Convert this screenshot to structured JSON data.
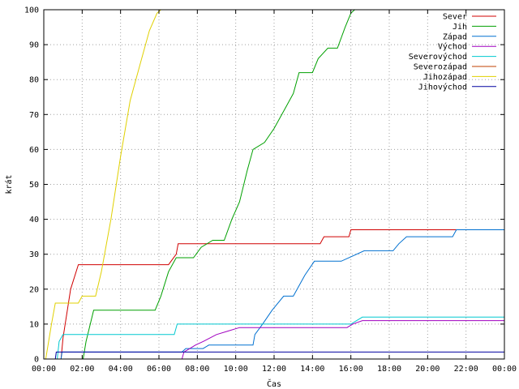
{
  "chart_data": {
    "type": "line",
    "xlabel": "Čas",
    "ylabel": "krát",
    "xlim": [
      0,
      24
    ],
    "ylim": [
      0,
      100
    ],
    "grid": true,
    "legend_position": "top-right",
    "x_ticks": [
      {
        "x": 0,
        "label": "00:00"
      },
      {
        "x": 2,
        "label": "02:00"
      },
      {
        "x": 4,
        "label": "04:00"
      },
      {
        "x": 6,
        "label": "06:00"
      },
      {
        "x": 8,
        "label": "08:00"
      },
      {
        "x": 10,
        "label": "10:00"
      },
      {
        "x": 12,
        "label": "12:00"
      },
      {
        "x": 14,
        "label": "14:00"
      },
      {
        "x": 16,
        "label": "16:00"
      },
      {
        "x": 18,
        "label": "18:00"
      },
      {
        "x": 20,
        "label": "20:00"
      },
      {
        "x": 22,
        "label": "22:00"
      },
      {
        "x": 24,
        "label": "00:00"
      }
    ],
    "y_ticks": [
      0,
      10,
      20,
      30,
      40,
      50,
      60,
      70,
      80,
      90,
      100
    ],
    "series": [
      {
        "name": "Sever",
        "color": "#d00000",
        "points": [
          [
            0.9,
            0
          ],
          [
            1.0,
            6
          ],
          [
            1.4,
            20
          ],
          [
            1.8,
            27
          ],
          [
            6.5,
            27
          ],
          [
            6.9,
            30
          ],
          [
            7.0,
            33
          ],
          [
            14.4,
            33
          ],
          [
            14.6,
            35
          ],
          [
            15.9,
            35
          ],
          [
            16.0,
            37
          ],
          [
            24,
            37
          ]
        ]
      },
      {
        "name": "Jih",
        "color": "#00a000",
        "points": [
          [
            2.05,
            0
          ],
          [
            2.2,
            5
          ],
          [
            2.6,
            14
          ],
          [
            5.8,
            14
          ],
          [
            6.1,
            18
          ],
          [
            6.5,
            25
          ],
          [
            6.9,
            29
          ],
          [
            7.8,
            29
          ],
          [
            8.2,
            32
          ],
          [
            8.8,
            34
          ],
          [
            9.4,
            34
          ],
          [
            9.8,
            40
          ],
          [
            10.2,
            45
          ],
          [
            10.6,
            54
          ],
          [
            10.9,
            60
          ],
          [
            11.5,
            62
          ],
          [
            12.0,
            66
          ],
          [
            12.6,
            72
          ],
          [
            13.0,
            76
          ],
          [
            13.3,
            82
          ],
          [
            14.0,
            82
          ],
          [
            14.3,
            86
          ],
          [
            14.8,
            89
          ],
          [
            15.3,
            89
          ],
          [
            15.7,
            95
          ],
          [
            16.0,
            99
          ],
          [
            16.2,
            100
          ]
        ]
      },
      {
        "name": "Západ",
        "color": "#0070d0",
        "points": [
          [
            0.9,
            0
          ],
          [
            0.95,
            2
          ],
          [
            7.2,
            2
          ],
          [
            7.4,
            3
          ],
          [
            8.3,
            3
          ],
          [
            8.6,
            4
          ],
          [
            10.9,
            4
          ],
          [
            11.0,
            7
          ],
          [
            11.4,
            10
          ],
          [
            11.9,
            14
          ],
          [
            12.5,
            18
          ],
          [
            13.0,
            18
          ],
          [
            13.6,
            24
          ],
          [
            14.1,
            28
          ],
          [
            15.5,
            28
          ],
          [
            16.7,
            31
          ],
          [
            18.2,
            31
          ],
          [
            18.5,
            33
          ],
          [
            18.9,
            35
          ],
          [
            21.3,
            35
          ],
          [
            21.5,
            37
          ],
          [
            24,
            37
          ]
        ]
      },
      {
        "name": "Východ",
        "color": "#a000c0",
        "points": [
          [
            7.2,
            0
          ],
          [
            7.3,
            2
          ],
          [
            7.9,
            4
          ],
          [
            8.3,
            5
          ],
          [
            9.0,
            7
          ],
          [
            9.6,
            8
          ],
          [
            10.2,
            9
          ],
          [
            15.8,
            9
          ],
          [
            16.1,
            10
          ],
          [
            16.6,
            11
          ],
          [
            24,
            11
          ]
        ]
      },
      {
        "name": "Severovýchod",
        "color": "#00c8d0",
        "points": [
          [
            0.7,
            0
          ],
          [
            0.8,
            5
          ],
          [
            1.0,
            7
          ],
          [
            6.8,
            7
          ],
          [
            6.95,
            10
          ],
          [
            11.0,
            10
          ],
          [
            11.2,
            10
          ],
          [
            16.0,
            10
          ],
          [
            16.3,
            11
          ],
          [
            16.6,
            12
          ],
          [
            24,
            12
          ]
        ]
      },
      {
        "name": "Severozápad",
        "color": "#c04000",
        "points": []
      },
      {
        "name": "Jihozápad",
        "color": "#e0d000",
        "points": [
          [
            0.1,
            0
          ],
          [
            0.4,
            10
          ],
          [
            0.6,
            16
          ],
          [
            1.8,
            16
          ],
          [
            2.0,
            18
          ],
          [
            2.7,
            18
          ],
          [
            3.0,
            25
          ],
          [
            3.5,
            40
          ],
          [
            4.0,
            58
          ],
          [
            4.5,
            74
          ],
          [
            5.0,
            84
          ],
          [
            5.5,
            94
          ],
          [
            5.9,
            99
          ],
          [
            6.1,
            100
          ]
        ]
      },
      {
        "name": "Jihovýchod",
        "color": "#0000a0",
        "points": [
          [
            0.6,
            0
          ],
          [
            0.65,
            2
          ],
          [
            24,
            2
          ]
        ]
      }
    ]
  }
}
